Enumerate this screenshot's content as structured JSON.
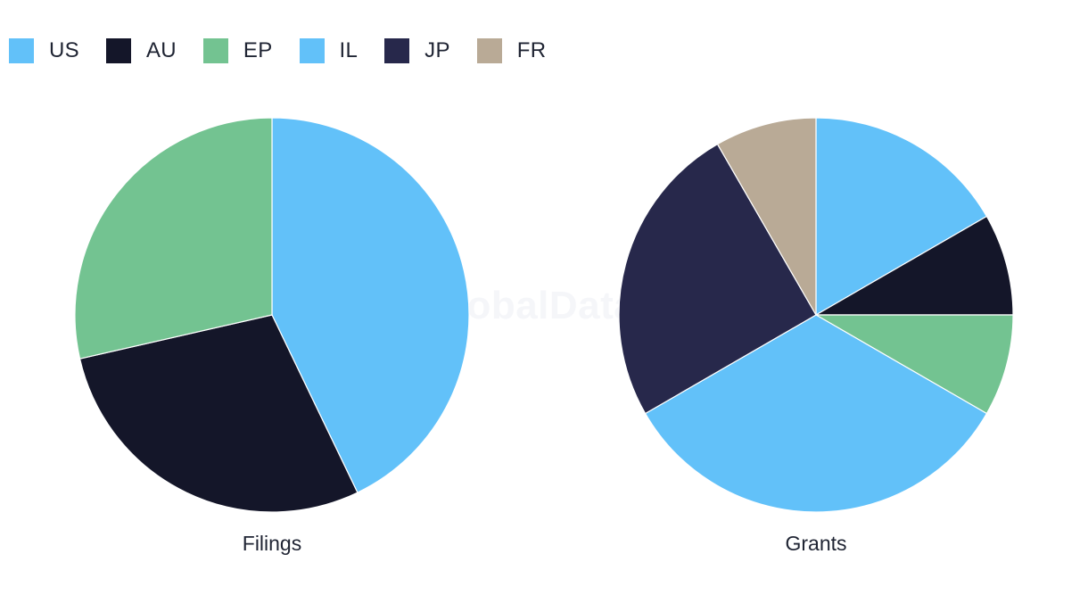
{
  "watermark": "GlobalData",
  "legend": [
    {
      "label": "US",
      "color": "#62c1f9"
    },
    {
      "label": "AU",
      "color": "#141629"
    },
    {
      "label": "EP",
      "color": "#73c391"
    },
    {
      "label": "IL",
      "color": "#62c1f9"
    },
    {
      "label": "JP",
      "color": "#27284b"
    },
    {
      "label": "FR",
      "color": "#b9aa96"
    }
  ],
  "chart_data": [
    {
      "type": "pie",
      "title": "Filings",
      "slices": [
        {
          "label": "US",
          "value": 3,
          "color": "#62c1f9"
        },
        {
          "label": "AU",
          "value": 2,
          "color": "#141629"
        },
        {
          "label": "EP",
          "value": 2,
          "color": "#73c391"
        }
      ]
    },
    {
      "type": "pie",
      "title": "Grants",
      "slices": [
        {
          "label": "US",
          "value": 2,
          "color": "#62c1f9"
        },
        {
          "label": "AU",
          "value": 1,
          "color": "#141629"
        },
        {
          "label": "EP",
          "value": 1,
          "color": "#73c391"
        },
        {
          "label": "IL",
          "value": 4,
          "color": "#62c1f9"
        },
        {
          "label": "JP",
          "value": 3,
          "color": "#27284b"
        },
        {
          "label": "FR",
          "value": 1,
          "color": "#b9aa96"
        }
      ]
    }
  ]
}
